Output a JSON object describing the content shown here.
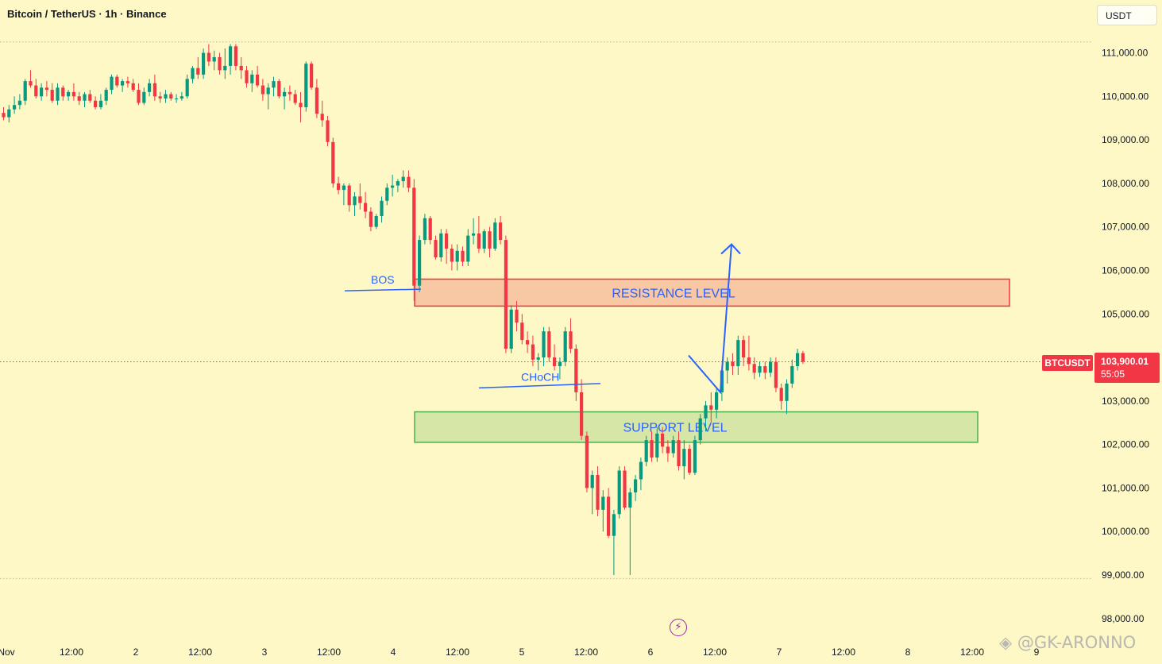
{
  "header": {
    "title": "Bitcoin / TetherUS · 1h · Binance"
  },
  "currency_button": {
    "label": "USDT"
  },
  "watermark": {
    "text": "◈ @GK-ARONNO"
  },
  "icons": {
    "lightning": "lightning-icon",
    "watermark_logo": "binance-logo-icon"
  },
  "colors": {
    "background": "#fdf8c5",
    "up": "#089981",
    "down": "#f23645",
    "annotation": "#2962ff",
    "resistance_fill": "#f8c7a3",
    "resistance_border": "#f23645",
    "support_fill": "#d6e6a6",
    "support_border": "#4caf50"
  },
  "price_tag": {
    "symbol": "BTCUSDT",
    "price": "103,900.01",
    "countdown": "55:05"
  },
  "chart_data": {
    "type": "candlestick",
    "title": "Bitcoin / TetherUS · 1h · Binance",
    "ylim": [
      97600,
      112000
    ],
    "y_ticks": [
      98000,
      99000,
      100000,
      101000,
      102000,
      103000,
      104000,
      105000,
      106000,
      107000,
      108000,
      109000,
      110000,
      111000
    ],
    "y_tick_labels": [
      "98,000.00",
      "99,000.00",
      "100,000.00",
      "101,000.00",
      "102,000.00",
      "103,000.00",
      "104,000.00",
      "105,000.00",
      "106,000.00",
      "107,000.00",
      "108,000.00",
      "109,000.00",
      "110,000.00",
      "111,000.00"
    ],
    "x_labels": [
      "Nov",
      "12:00",
      "2",
      "12:00",
      "3",
      "12:00",
      "4",
      "12:00",
      "5",
      "12:00",
      "6",
      "12:00",
      "7",
      "12:00",
      "8",
      "12:00",
      "9"
    ],
    "candle_interval": "1h",
    "first_candle_hour": 2,
    "last_price": 103900.01,
    "candles_ohlc": [
      [
        109620,
        109750,
        109450,
        109520
      ],
      [
        109520,
        109800,
        109400,
        109700
      ],
      [
        109700,
        110000,
        109600,
        109800
      ],
      [
        109800,
        110050,
        109700,
        109900
      ],
      [
        109900,
        110400,
        109800,
        110350
      ],
      [
        110350,
        110600,
        110200,
        110250
      ],
      [
        110250,
        110400,
        109950,
        110000
      ],
      [
        110000,
        110300,
        109900,
        110200
      ],
      [
        110200,
        110350,
        110000,
        110150
      ],
      [
        110150,
        110300,
        109850,
        109900
      ],
      [
        109900,
        110300,
        109800,
        110200
      ],
      [
        110200,
        110250,
        109900,
        110000
      ],
      [
        110000,
        110150,
        109900,
        110100
      ],
      [
        110100,
        110300,
        109900,
        110000
      ],
      [
        110000,
        110100,
        109800,
        109900
      ],
      [
        109900,
        110100,
        109750,
        110050
      ],
      [
        110050,
        110150,
        109850,
        109900
      ],
      [
        109900,
        110000,
        109700,
        109750
      ],
      [
        109750,
        110050,
        109700,
        109900
      ],
      [
        109900,
        110200,
        109800,
        110150
      ],
      [
        110150,
        110500,
        110050,
        110450
      ],
      [
        110450,
        110500,
        110200,
        110250
      ],
      [
        110250,
        110400,
        110100,
        110350
      ],
      [
        110350,
        110450,
        110200,
        110300
      ],
      [
        110300,
        110400,
        110100,
        110150
      ],
      [
        110150,
        110300,
        109800,
        109850
      ],
      [
        109850,
        110200,
        109800,
        110100
      ],
      [
        110100,
        110400,
        110000,
        110300
      ],
      [
        110300,
        110500,
        109900,
        110000
      ],
      [
        110000,
        110100,
        109850,
        109950
      ],
      [
        109950,
        110150,
        109850,
        110050
      ],
      [
        110050,
        110100,
        109900,
        109950
      ],
      [
        109950,
        110050,
        109850,
        109950
      ],
      [
        109950,
        110100,
        109900,
        110000
      ],
      [
        110000,
        110500,
        109950,
        110400
      ],
      [
        110400,
        110700,
        110300,
        110650
      ],
      [
        110650,
        110900,
        110400,
        110500
      ],
      [
        110500,
        111100,
        110400,
        111000
      ],
      [
        111000,
        111200,
        110700,
        110800
      ],
      [
        110800,
        111050,
        110600,
        110900
      ],
      [
        110900,
        111000,
        110500,
        110600
      ],
      [
        110600,
        111100,
        110400,
        110700
      ],
      [
        110700,
        111200,
        110500,
        111150
      ],
      [
        111150,
        111200,
        110600,
        110700
      ],
      [
        110700,
        110900,
        110400,
        110600
      ],
      [
        110600,
        110700,
        110200,
        110300
      ],
      [
        110300,
        110600,
        110100,
        110500
      ],
      [
        110500,
        110700,
        110200,
        110250
      ],
      [
        110250,
        110400,
        109900,
        110050
      ],
      [
        110050,
        110300,
        109700,
        110200
      ],
      [
        110200,
        110450,
        110000,
        110350
      ],
      [
        110350,
        110400,
        109950,
        110000
      ],
      [
        110000,
        110200,
        109700,
        110100
      ],
      [
        110100,
        110250,
        109900,
        110050
      ],
      [
        110050,
        110150,
        109800,
        109850
      ],
      [
        109850,
        110100,
        109400,
        109750
      ],
      [
        109750,
        110800,
        109650,
        110750
      ],
      [
        110750,
        110800,
        110150,
        110200
      ],
      [
        110200,
        110400,
        109500,
        109600
      ],
      [
        109600,
        109900,
        109300,
        109450
      ],
      [
        109450,
        109550,
        108850,
        108950
      ],
      [
        108950,
        109050,
        107900,
        108000
      ],
      [
        108000,
        108150,
        107750,
        107850
      ],
      [
        107850,
        108000,
        107500,
        107950
      ],
      [
        107950,
        108000,
        107350,
        107500
      ],
      [
        107500,
        107800,
        107250,
        107700
      ],
      [
        107700,
        108000,
        107400,
        107550
      ],
      [
        107550,
        107800,
        107200,
        107350
      ],
      [
        107350,
        107450,
        106900,
        107000
      ],
      [
        107000,
        107300,
        106950,
        107250
      ],
      [
        107250,
        107700,
        107100,
        107600
      ],
      [
        107600,
        108000,
        107500,
        107900
      ],
      [
        107900,
        108200,
        107700,
        107950
      ],
      [
        107950,
        108100,
        107800,
        108050
      ],
      [
        108050,
        108300,
        107900,
        108150
      ],
      [
        108150,
        108300,
        107800,
        107900
      ],
      [
        107900,
        108100,
        105300,
        105650
      ],
      [
        105650,
        106800,
        105500,
        106700
      ],
      [
        106700,
        107300,
        106600,
        107200
      ],
      [
        107200,
        107250,
        106600,
        106700
      ],
      [
        106700,
        106800,
        106250,
        106300
      ],
      [
        106300,
        106950,
        106200,
        106850
      ],
      [
        106850,
        106950,
        106150,
        106500
      ],
      [
        106500,
        106600,
        106000,
        106200
      ],
      [
        106200,
        106600,
        106000,
        106450
      ],
      [
        106450,
        106550,
        106100,
        106200
      ],
      [
        106200,
        106950,
        106100,
        106800
      ],
      [
        106800,
        107200,
        106600,
        106850
      ],
      [
        106850,
        107250,
        106400,
        106500
      ],
      [
        106500,
        106950,
        106400,
        106900
      ],
      [
        106900,
        107000,
        106300,
        106500
      ],
      [
        106500,
        107200,
        106450,
        107100
      ],
      [
        107100,
        107250,
        106600,
        106700
      ],
      [
        106700,
        106800,
        104100,
        104200
      ],
      [
        104200,
        105200,
        104100,
        105100
      ],
      [
        105100,
        105300,
        104600,
        104800
      ],
      [
        104800,
        105000,
        104300,
        104400
      ],
      [
        104400,
        104600,
        104100,
        104300
      ],
      [
        104300,
        104500,
        103800,
        103950
      ],
      [
        103950,
        104100,
        103700,
        104000
      ],
      [
        104000,
        104700,
        103800,
        104600
      ],
      [
        104600,
        104700,
        103900,
        104000
      ],
      [
        104000,
        104300,
        103700,
        103800
      ],
      [
        103800,
        104000,
        103500,
        103900
      ],
      [
        103900,
        104700,
        103800,
        104600
      ],
      [
        104600,
        104900,
        104100,
        104200
      ],
      [
        104200,
        104300,
        103000,
        103200
      ],
      [
        103200,
        103500,
        102100,
        102200
      ],
      [
        102200,
        102300,
        100900,
        101000
      ],
      [
        101000,
        101400,
        100400,
        101300
      ],
      [
        101300,
        101500,
        100350,
        100500
      ],
      [
        100500,
        100950,
        100000,
        100800
      ],
      [
        100800,
        101000,
        99850,
        99900
      ],
      [
        99900,
        100500,
        99000,
        100400
      ],
      [
        100400,
        101500,
        100300,
        101400
      ],
      [
        101400,
        101500,
        100500,
        100550
      ],
      [
        100550,
        101000,
        99000,
        100900
      ],
      [
        100900,
        101300,
        100700,
        101200
      ],
      [
        101200,
        101700,
        100950,
        101600
      ],
      [
        101600,
        102200,
        101500,
        102100
      ],
      [
        102100,
        102300,
        101600,
        101700
      ],
      [
        101700,
        102400,
        101600,
        102250
      ],
      [
        102250,
        102400,
        101800,
        101950
      ],
      [
        101950,
        102100,
        101600,
        101800
      ],
      [
        101800,
        102200,
        101700,
        102100
      ],
      [
        102100,
        102300,
        101400,
        101500
      ],
      [
        101500,
        102100,
        101200,
        101900
      ],
      [
        101900,
        102000,
        101300,
        101350
      ],
      [
        101350,
        102200,
        101300,
        102100
      ],
      [
        102100,
        102700,
        102000,
        102600
      ],
      [
        102600,
        103000,
        102300,
        102900
      ],
      [
        102900,
        103200,
        102500,
        102800
      ],
      [
        102800,
        103300,
        102600,
        103200
      ],
      [
        103200,
        103800,
        103000,
        103700
      ],
      [
        103700,
        104000,
        103400,
        103900
      ],
      [
        103900,
        104100,
        103600,
        103800
      ],
      [
        103800,
        104500,
        103600,
        104400
      ],
      [
        104400,
        104500,
        103800,
        104000
      ],
      [
        104000,
        104500,
        103700,
        103850
      ],
      [
        103850,
        104000,
        103500,
        103650
      ],
      [
        103650,
        103900,
        103550,
        103800
      ],
      [
        103800,
        103900,
        103500,
        103650
      ],
      [
        103650,
        104000,
        103550,
        103900
      ],
      [
        103900,
        104000,
        103200,
        103300
      ],
      [
        103300,
        103400,
        102800,
        103000
      ],
      [
        103000,
        103500,
        102700,
        103400
      ],
      [
        103400,
        103950,
        103300,
        103800
      ],
      [
        103800,
        104200,
        103700,
        104100
      ],
      [
        104100,
        104150,
        103850,
        103900
      ]
    ],
    "annotations": {
      "bos": {
        "label": "BOS",
        "price": 105550
      },
      "choch": {
        "label": "CHoCH",
        "price_start": 103300,
        "price_end": 103400
      },
      "resistance": {
        "label": "RESISTANCE LEVEL",
        "price_top": 105800,
        "price_bottom": 105180
      },
      "support": {
        "label": "SUPPORT LEVEL",
        "price_top": 102750,
        "price_bottom": 102050
      },
      "projection": {
        "path": [
          "103900",
          "103200",
          "106600"
        ]
      }
    },
    "gridlines": false,
    "horizontal_dotted_lines": [
      111250,
      98920,
      103900.01
    ]
  }
}
